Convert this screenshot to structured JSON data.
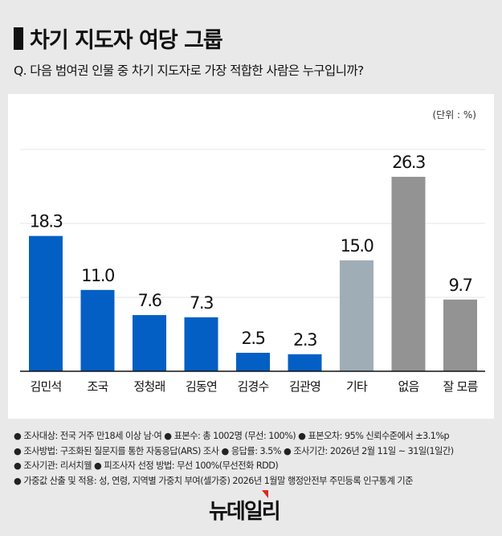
{
  "header": {
    "title": "차기 지도자 여당 그룹",
    "question": "Q. 다음 범여권 인물 중 차기 지도자로 가장 적합한 사람은 누구입니까?"
  },
  "chart_data": {
    "type": "bar",
    "unit_label": "(단위 : %)",
    "categories": [
      "김민석",
      "조국",
      "정청래",
      "김동연",
      "김경수",
      "김관영",
      "기타",
      "없음",
      "잘 모름"
    ],
    "values": [
      18.3,
      11.0,
      7.6,
      7.3,
      2.5,
      2.3,
      15.0,
      26.3,
      9.7
    ],
    "value_labels": [
      "18.3",
      "11.0",
      "7.6",
      "7.3",
      "2.5",
      "2.3",
      "15.0",
      "26.3",
      "9.7"
    ],
    "colors": [
      "#045fc4",
      "#045fc4",
      "#045fc4",
      "#045fc4",
      "#045fc4",
      "#045fc4",
      "#9fadb6",
      "#939393",
      "#939393"
    ],
    "ylim": [
      0,
      30
    ],
    "gridlines": [
      10,
      20,
      30
    ],
    "grid": true
  },
  "footnotes": [
    "● 조사대상: 전국 거주 만18세 이상 남·여 ● 표본수: 총 1002명 (무선: 100%) ● 표본오차: 95% 신뢰수준에서 ±3.1%p",
    "● 조사방법: 구조화된 질문지를 통한 자동응답(ARS) 조사 ● 응답률: 3.5% ● 조사기간: 2026년 2월 11일 ~ 31일(1일간)",
    "● 조사기관: 리서치웰 ● 피조사자 선정 방법: 무선 100%(무선전화 RDD)",
    "● 가중값 산출 및 적용: 성, 연령, 지역별 가중치 부여(셀가중) 2026년 1월말 행정안전부 주민등록 인구통계 기준"
  ],
  "logo": "뉴데일리"
}
